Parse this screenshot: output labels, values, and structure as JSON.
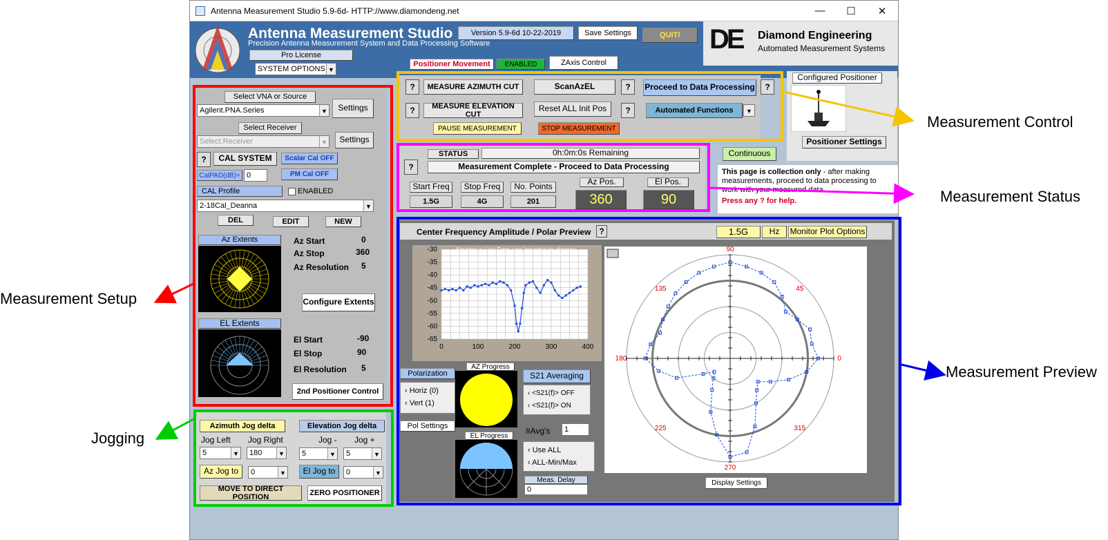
{
  "window": {
    "title": "Antenna Measurement Studio 5.9-6d- HTTP://www.diamondeng.net",
    "min": "—",
    "max": "☐",
    "close": "✕"
  },
  "header": {
    "app_name": "Antenna Measurement Studio",
    "tagline": "Precision Antenna Measurement System and Data Processing Software",
    "license": "Pro License",
    "system_options": "SYSTEM OPTIONS",
    "version": "Version 5.9-6d 10-22-2019",
    "save_settings": "Save Settings",
    "quit": "QUIT!",
    "company": "Diamond Engineering",
    "company_sub": "Automated Measurement Systems",
    "logo_text": "DE",
    "positioner_movement": "Positioner Movement",
    "enabled": "ENABLED",
    "zaxis": "ZAxis Control"
  },
  "setup": {
    "select_vna": "Select VNA or Source",
    "vna_value": "Agilent.PNA.Series",
    "settings": "Settings",
    "select_receiver": "Select Receiver",
    "receiver_value": "Select.Receiver",
    "q": "?",
    "cal_system": "CAL SYSTEM",
    "scalar_cal": "Scalar Cal OFF",
    "calpad_label": "CalPAD(dB)=",
    "calpad_value": "0",
    "pm_cal": "PM Cal OFF",
    "cal_profile": "CAL Profile",
    "cal_enabled": "ENABLED",
    "profile_value": "2-18Cal_Deanna",
    "del": "DEL",
    "edit": "EDIT",
    "new": "NEW",
    "az_extents": "Az Extents",
    "az_start_label": "Az Start",
    "az_start": "0",
    "az_stop_label": "Az Stop",
    "az_stop": "360",
    "az_res_label": "Az Resolution",
    "az_res": "5",
    "configure_extents": "Configure Extents",
    "el_extents": "EL Extents",
    "el_start_label": "El Start",
    "el_start": "-90",
    "el_stop_label": "El Stop",
    "el_stop": "90",
    "el_res_label": "El Resolution",
    "el_res": "5",
    "second_positioner": "2nd Positioner Control"
  },
  "jog": {
    "az_delta": "Azimuth Jog delta",
    "el_delta": "Elevation Jog delta",
    "jog_left": "Jog Left",
    "jog_right": "Jog Right",
    "jog_minus": "Jog -",
    "jog_plus": "Jog +",
    "left_val": "5",
    "right_val": "180",
    "minus_val": "5",
    "plus_val": "5",
    "az_jog_to": "Az Jog to",
    "az_jog_val": "0",
    "el_jog_to": "El Jog to",
    "el_jog_val": "0",
    "move_direct": "MOVE TO DIRECT POSITION",
    "zero": "ZERO POSITIONER"
  },
  "control": {
    "measure_az": "MEASURE AZIMUTH CUT",
    "scan_azel": "ScanAzEL",
    "proceed": "Proceed to Data Processing",
    "measure_el": "MEASURE ELEVATION CUT",
    "reset_all": "Reset ALL Init Pos",
    "automated": "Automated Functions",
    "pause": "PAUSE MEASUREMENT",
    "stop": "STOP MEASUREMENT",
    "configured_positioner": "Configured Positioner",
    "positioner_settings": "Positioner Settings",
    "continuous": "Continuous"
  },
  "status": {
    "status_label": "STATUS",
    "remaining": "0h:0m:0s Remaining",
    "message": "Measurement Complete - Proceed to Data Processing",
    "start_freq_label": "Start Freq",
    "start_freq": "1.5G",
    "stop_freq_label": "Stop Freq",
    "stop_freq": "4G",
    "points_label": "No. Points",
    "points": "201",
    "az_pos_label": "Az Pos.",
    "az_pos": "360",
    "el_pos_label": "El Pos.",
    "el_pos": "90",
    "info_bold": "This page is collection only",
    "info_rest": " - after making measurements, proceed to data processing to work with your measured data.",
    "help": "Press any ? for help."
  },
  "preview": {
    "title": "Center Frequency Amplitude  / Polar Preview",
    "freq": "1.5G",
    "unit": "Hz",
    "monitor_opts": "Monitor Plot Options",
    "monitor_note": "Monitor = Link Data use 'monitor' to change",
    "polarization": "Polarization",
    "horiz": "Horiz (0)",
    "vert": "Vert (1)",
    "pol_settings": "Pol Settings",
    "az_progress": "AZ Progress",
    "el_progress": "EL Progress",
    "s21_avg": "S21 Averaging",
    "s21_off": "<S21(f)> OFF",
    "s21_on": "<S21(f)> ON",
    "avgs_label": "#Avg's",
    "avgs_val": "1",
    "use_all": "Use ALL",
    "all_minmax": "ALL-Min/Max",
    "meas_delay": "Meas. Delay",
    "delay_val": "0",
    "display_settings": "Display Settings"
  },
  "chart_data": [
    {
      "type": "line",
      "xlim": [
        0,
        400
      ],
      "ylim": [
        -65,
        -30
      ],
      "xticks": [
        "0",
        "100",
        "200",
        "300",
        "400"
      ],
      "yticks": [
        "-30",
        "-35",
        "-40",
        "-45",
        "-50",
        "-55",
        "-60",
        "-65"
      ],
      "x": [
        0,
        10,
        20,
        30,
        40,
        50,
        60,
        70,
        80,
        90,
        100,
        110,
        120,
        130,
        140,
        150,
        160,
        170,
        180,
        190,
        200,
        205,
        210,
        215,
        220,
        225,
        230,
        240,
        250,
        260,
        270,
        280,
        290,
        300,
        310,
        320,
        330,
        340,
        350,
        360,
        370,
        380
      ],
      "series": [
        {
          "values": [
            -46,
            -45.5,
            -46,
            -45.5,
            -46,
            -45,
            -46,
            -44.5,
            -45,
            -44,
            -44.5,
            -44,
            -43.5,
            -44,
            -43,
            -43.5,
            -42.5,
            -43,
            -44,
            -46,
            -52,
            -59,
            -62,
            -59,
            -53,
            -47,
            -44,
            -43,
            -42.5,
            -45,
            -47,
            -44,
            -42,
            -43,
            -46,
            -48,
            -49,
            -48,
            -47,
            -46,
            -45,
            -44.5
          ]
        }
      ]
    },
    {
      "type": "scatter",
      "polar": true,
      "angle_labels": [
        "0",
        "45",
        "90",
        "135",
        "180",
        "225",
        "270",
        "315"
      ],
      "angles": [
        0,
        10,
        20,
        30,
        40,
        50,
        60,
        70,
        80,
        90,
        100,
        110,
        120,
        130,
        140,
        150,
        160,
        170,
        180,
        190,
        200,
        210,
        220,
        230,
        240,
        250,
        260,
        270,
        280,
        290,
        300,
        310,
        320,
        330,
        340,
        350
      ],
      "series": [
        {
          "values": [
            0.85,
            0.8,
            0.82,
            0.75,
            0.7,
            0.78,
            0.85,
            0.88,
            0.9,
            0.93,
            0.9,
            0.88,
            0.85,
            0.82,
            0.78,
            0.75,
            0.72,
            0.78,
            0.82,
            0.7,
            0.55,
            0.3,
            0.2,
            0.25,
            0.35,
            0.55,
            0.75,
            0.95,
            0.92,
            0.7,
            0.5,
            0.4,
            0.35,
            0.45,
            0.6,
            0.75
          ]
        }
      ]
    }
  ],
  "callouts": {
    "control": "Measurement Control",
    "status": "Measurement Status",
    "setup": "Measurement Setup",
    "jogging": "Jogging",
    "preview": "Measurement Preview"
  }
}
